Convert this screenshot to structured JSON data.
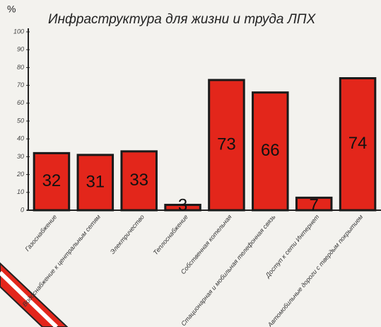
{
  "chart_data": {
    "type": "bar",
    "title": "Инфраструктура для жизни и труда ЛПХ",
    "y_label": "%",
    "categories": [
      "Газоснабжение",
      "Водоснабжение к центральным сетям",
      "Электричество",
      "Теплоснабжение",
      "Собственная котельная",
      "Стационарная и мобильная телефонная связь",
      "Доступ к сети Интернет",
      "Автомобильные дороги с твердым покрытием"
    ],
    "values": [
      32,
      31,
      33,
      3,
      73,
      66,
      7,
      74
    ],
    "color": "#e3261b",
    "ylim": [
      0,
      100
    ],
    "yticks": [
      0,
      10,
      20,
      30,
      40,
      50,
      60,
      70,
      80,
      90,
      100
    ],
    "grid": false
  }
}
